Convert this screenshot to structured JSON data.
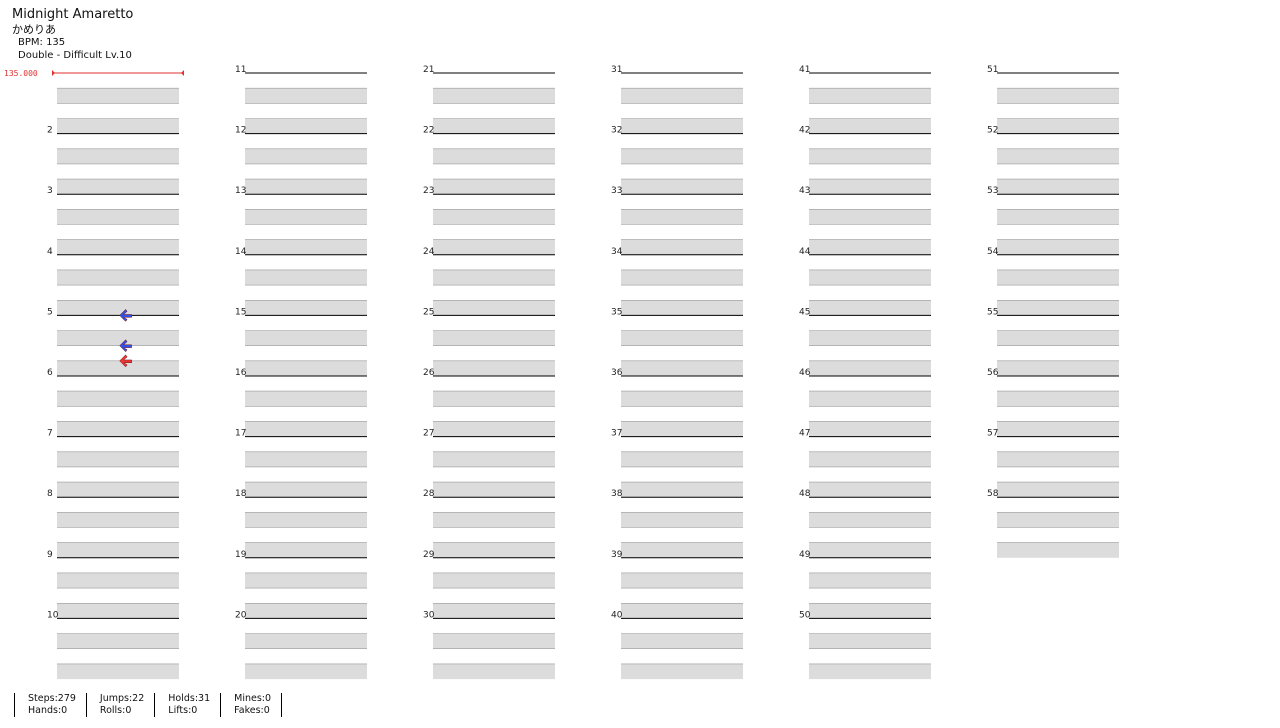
{
  "song": {
    "title": "Midnight Amaretto",
    "artist": "かめりあ",
    "bpm_label": "BPM: 135",
    "difficulty_label": "Double - Difficult Lv.10"
  },
  "bpm_marker": "135.000",
  "measures": [
    "2",
    "3",
    "4",
    "5",
    "6",
    "7",
    "8",
    "9",
    "10",
    "11",
    "12",
    "13",
    "14",
    "15",
    "16",
    "17",
    "18",
    "19",
    "20",
    "21",
    "22",
    "23",
    "24",
    "25",
    "26",
    "27",
    "28",
    "29",
    "30",
    "31",
    "32",
    "33",
    "34",
    "35",
    "36",
    "37",
    "38",
    "39",
    "40",
    "41",
    "42",
    "43",
    "44",
    "45",
    "46",
    "47",
    "48",
    "49",
    "50",
    "51",
    "52",
    "53",
    "54",
    "55",
    "56",
    "57",
    "58"
  ],
  "stats": {
    "steps": "Steps:279",
    "hands": "Hands:0",
    "jumps": "Jumps:22",
    "rolls": "Rolls:0",
    "holds": "Holds:31",
    "lifts": "Lifts:0",
    "mines": "Mines:0",
    "fakes": "Fakes:0"
  },
  "colors": {
    "quarter_note": "#e83838",
    "eighth_note": "#2f52e8",
    "hold_body": "#7dd87a",
    "measure_band": "#dcdcdc",
    "bpm_line": "#e03030"
  },
  "notes": [
    [
      0,
      16,
      4,
      "L",
      "eighth"
    ],
    [
      0,
      18,
      4,
      "L",
      "eighth"
    ],
    [
      0,
      19,
      4,
      "L",
      "quarter"
    ]
  ]
}
